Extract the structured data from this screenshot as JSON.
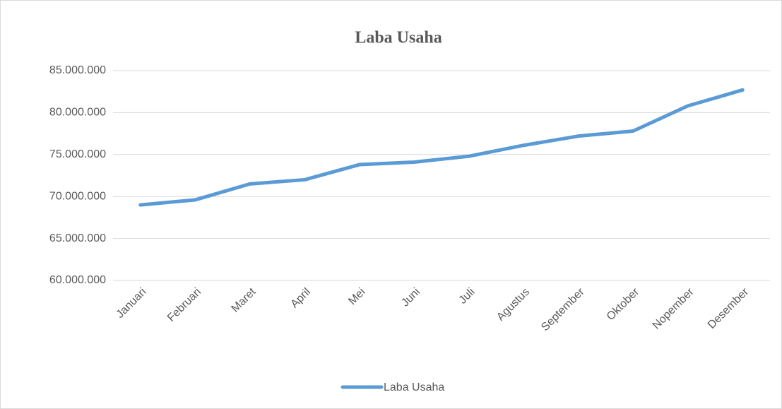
{
  "chart_data": {
    "type": "line",
    "title": "Laba Usaha",
    "categories": [
      "Januari",
      "Februari",
      "Maret",
      "April",
      "Mei",
      "Juni",
      "Juli",
      "Agustus",
      "September",
      "Oktober",
      "Nopember",
      "Desember"
    ],
    "series": [
      {
        "name": "Laba Usaha",
        "color": "#5b9bd5",
        "values": [
          69000000,
          69600000,
          71500000,
          72000000,
          73800000,
          74100000,
          74800000,
          76100000,
          77200000,
          77800000,
          80800000,
          82700000
        ]
      }
    ],
    "ylim": [
      60000000,
      85000000
    ],
    "yticks": [
      {
        "value": 60000000,
        "label": "60.000.000"
      },
      {
        "value": 65000000,
        "label": "65.000.000"
      },
      {
        "value": 70000000,
        "label": "70.000.000"
      },
      {
        "value": 75000000,
        "label": "75.000.000"
      },
      {
        "value": 80000000,
        "label": "80.000.000"
      },
      {
        "value": 85000000,
        "label": "85.000.000"
      }
    ],
    "grid": true,
    "legend": "bottom"
  }
}
